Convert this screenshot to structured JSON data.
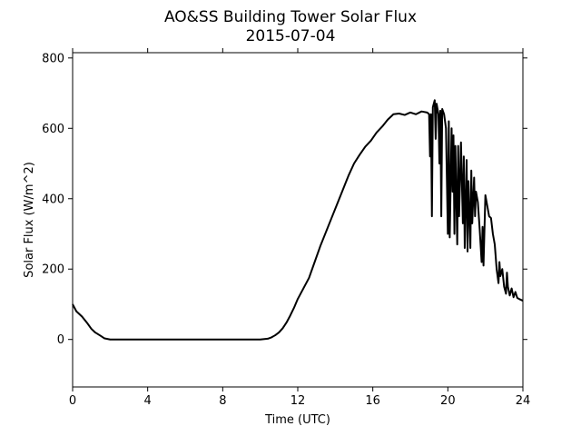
{
  "chart_data": {
    "type": "line",
    "title": "AO&SS Building Tower Solar Flux",
    "subtitle": "2015-07-04",
    "xlabel": "Time (UTC)",
    "ylabel": "Solar Flux (W/m^2)",
    "xlim": [
      0,
      24
    ],
    "ylim": [
      -135,
      815
    ],
    "xticks": [
      0,
      4,
      8,
      12,
      16,
      20,
      24
    ],
    "yticks": [
      0,
      200,
      400,
      600,
      800
    ],
    "grid": false,
    "series": [
      {
        "color": "#000000",
        "points": [
          [
            0.0,
            100
          ],
          [
            0.2,
            80
          ],
          [
            0.5,
            65
          ],
          [
            0.8,
            45
          ],
          [
            1.0,
            30
          ],
          [
            1.2,
            20
          ],
          [
            1.5,
            10
          ],
          [
            1.7,
            3
          ],
          [
            2.0,
            0
          ],
          [
            3.0,
            0
          ],
          [
            5.0,
            0
          ],
          [
            7.0,
            0
          ],
          [
            9.0,
            0
          ],
          [
            10.0,
            0
          ],
          [
            10.4,
            2
          ],
          [
            10.6,
            6
          ],
          [
            10.8,
            12
          ],
          [
            11.0,
            20
          ],
          [
            11.2,
            32
          ],
          [
            11.4,
            48
          ],
          [
            11.6,
            68
          ],
          [
            11.8,
            90
          ],
          [
            12.0,
            115
          ],
          [
            12.3,
            145
          ],
          [
            12.6,
            175
          ],
          [
            12.9,
            220
          ],
          [
            13.2,
            265
          ],
          [
            13.5,
            305
          ],
          [
            13.8,
            345
          ],
          [
            14.1,
            385
          ],
          [
            14.4,
            425
          ],
          [
            14.7,
            465
          ],
          [
            15.0,
            500
          ],
          [
            15.3,
            525
          ],
          [
            15.6,
            548
          ],
          [
            15.9,
            565
          ],
          [
            16.2,
            588
          ],
          [
            16.5,
            605
          ],
          [
            16.8,
            625
          ],
          [
            17.1,
            640
          ],
          [
            17.4,
            642
          ],
          [
            17.7,
            638
          ],
          [
            18.0,
            645
          ],
          [
            18.3,
            640
          ],
          [
            18.6,
            648
          ],
          [
            18.9,
            645
          ],
          [
            19.0,
            640
          ],
          [
            19.05,
            520
          ],
          [
            19.1,
            640
          ],
          [
            19.15,
            350
          ],
          [
            19.2,
            660
          ],
          [
            19.3,
            680
          ],
          [
            19.35,
            570
          ],
          [
            19.4,
            670
          ],
          [
            19.5,
            640
          ],
          [
            19.55,
            500
          ],
          [
            19.6,
            650
          ],
          [
            19.65,
            350
          ],
          [
            19.7,
            655
          ],
          [
            19.8,
            640
          ],
          [
            19.9,
            600
          ],
          [
            20.0,
            300
          ],
          [
            20.05,
            620
          ],
          [
            20.1,
            290
          ],
          [
            20.2,
            600
          ],
          [
            20.25,
            420
          ],
          [
            20.3,
            580
          ],
          [
            20.35,
            300
          ],
          [
            20.4,
            550
          ],
          [
            20.5,
            270
          ],
          [
            20.55,
            550
          ],
          [
            20.6,
            350
          ],
          [
            20.7,
            560
          ],
          [
            20.8,
            330
          ],
          [
            20.85,
            520
          ],
          [
            20.9,
            260
          ],
          [
            21.0,
            510
          ],
          [
            21.05,
            250
          ],
          [
            21.1,
            450
          ],
          [
            21.2,
            260
          ],
          [
            21.25,
            480
          ],
          [
            21.3,
            330
          ],
          [
            21.4,
            460
          ],
          [
            21.45,
            350
          ],
          [
            21.5,
            420
          ],
          [
            21.6,
            390
          ],
          [
            21.7,
            310
          ],
          [
            21.8,
            220
          ],
          [
            21.85,
            320
          ],
          [
            21.9,
            210
          ],
          [
            22.0,
            410
          ],
          [
            22.1,
            380
          ],
          [
            22.2,
            350
          ],
          [
            22.3,
            345
          ],
          [
            22.4,
            300
          ],
          [
            22.5,
            270
          ],
          [
            22.6,
            200
          ],
          [
            22.7,
            160
          ],
          [
            22.75,
            220
          ],
          [
            22.8,
            180
          ],
          [
            22.9,
            200
          ],
          [
            23.0,
            150
          ],
          [
            23.1,
            130
          ],
          [
            23.15,
            190
          ],
          [
            23.2,
            150
          ],
          [
            23.3,
            125
          ],
          [
            23.4,
            145
          ],
          [
            23.5,
            120
          ],
          [
            23.6,
            135
          ],
          [
            23.7,
            118
          ],
          [
            23.8,
            115
          ],
          [
            24.0,
            110
          ]
        ]
      }
    ]
  }
}
